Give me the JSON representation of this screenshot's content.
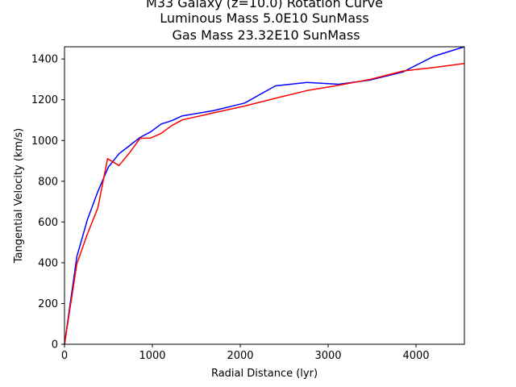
{
  "chart_data": {
    "type": "line",
    "title_lines": [
      "M33 Galaxy (z=10.0) Rotation Curve",
      "Luminous Mass 5.0E10 SunMass",
      "Gas Mass 23.32E10 SunMass"
    ],
    "xlabel": "Radial Distance (lyr)",
    "ylabel": "Tangential Velocity (km/s)",
    "xlim": [
      0,
      4550
    ],
    "ylim": [
      0,
      1460
    ],
    "xticks": [
      0,
      1000,
      2000,
      3000,
      4000
    ],
    "yticks": [
      0,
      200,
      400,
      600,
      800,
      1000,
      1200,
      1400
    ],
    "grid": false,
    "series": [
      {
        "color": "#0000ff",
        "x": [
          0,
          140,
          260,
          380,
          500,
          620,
          740,
          860,
          980,
          1100,
          1220,
          1340,
          1700,
          2050,
          2400,
          2760,
          3120,
          3480,
          3850,
          4200,
          4550
        ],
        "y": [
          0,
          430,
          610,
          750,
          870,
          935,
          975,
          1015,
          1042,
          1081,
          1097,
          1121,
          1147,
          1184,
          1268,
          1285,
          1276,
          1297,
          1336,
          1413,
          1460
        ]
      },
      {
        "color": "#ff0000",
        "x": [
          0,
          140,
          260,
          380,
          490,
          620,
          740,
          860,
          980,
          1100,
          1220,
          1340,
          1700,
          2050,
          2400,
          2760,
          3120,
          3480,
          3850,
          4200,
          4550
        ],
        "y": [
          0,
          395,
          540,
          670,
          911,
          877,
          940,
          1011,
          1012,
          1035,
          1073,
          1101,
          1136,
          1169,
          1207,
          1245,
          1271,
          1300,
          1341,
          1358,
          1378
        ]
      }
    ]
  }
}
